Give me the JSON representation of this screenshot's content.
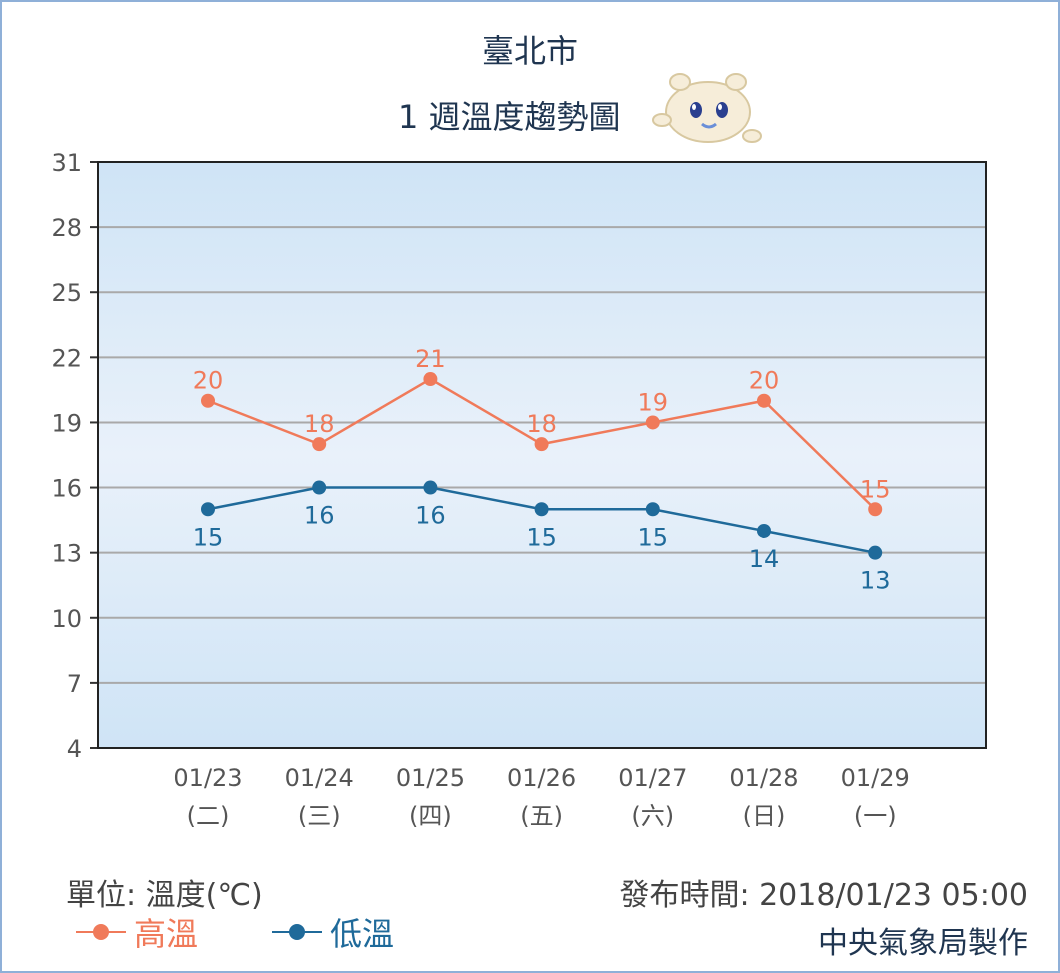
{
  "header": {
    "city": "臺北市",
    "subtitle": "1 週溫度趨勢圖"
  },
  "footer": {
    "unit": "單位: 溫度(℃)",
    "issued": "發布時間: 2018/01/23 05:00",
    "maker": "中央氣象局製作"
  },
  "colors": {
    "high": "#f07a5a",
    "low": "#1f6a9a",
    "title": "#1f3550"
  },
  "icons": {
    "mascot": "mascot-icon"
  },
  "chart_data": {
    "type": "line",
    "title": "1 週溫度趨勢圖",
    "xlabel": "",
    "ylabel": "",
    "ylim": [
      4,
      31
    ],
    "yticks": [
      4,
      7,
      10,
      13,
      16,
      19,
      22,
      25,
      28,
      31
    ],
    "grid": true,
    "categories": [
      "01/23",
      "01/24",
      "01/25",
      "01/26",
      "01/27",
      "01/28",
      "01/29"
    ],
    "weekdays": [
      "(二)",
      "(三)",
      "(四)",
      "(五)",
      "(六)",
      "(日)",
      "(一)"
    ],
    "series": [
      {
        "name": "高溫",
        "color": "#f07a5a",
        "values": [
          20,
          18,
          21,
          18,
          19,
          20,
          15
        ]
      },
      {
        "name": "低溫",
        "color": "#1f6a9a",
        "values": [
          15,
          16,
          16,
          15,
          15,
          14,
          13
        ]
      }
    ],
    "legend": "bottom-left"
  }
}
